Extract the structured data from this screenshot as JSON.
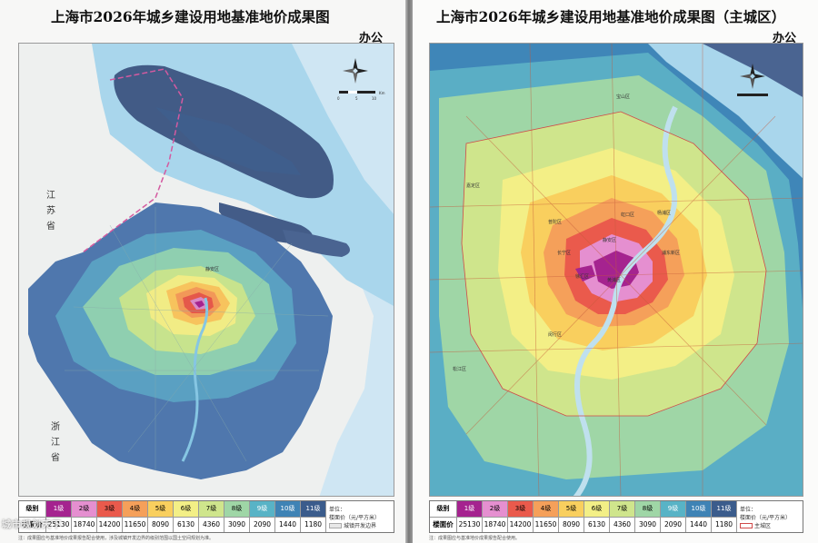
{
  "left_page": {
    "title": "上海市2026年城乡建设用地基准地价成果图",
    "subtitle": "办公",
    "map_labels": {
      "province_1": [
        "江",
        "苏",
        "省"
      ],
      "province_2": [
        "浙",
        "江",
        "省"
      ],
      "district": "静安区"
    },
    "scale_bar": {
      "ticks": [
        "0",
        "5",
        "10",
        "Km"
      ]
    },
    "legend_note": {
      "unit": "单位：",
      "unit_name": "楼面价",
      "unit_value": "（元/平方米）",
      "boundary": "城镇开发边界"
    },
    "footnote": "注：成果图应与基准地价成果报告配合使用，涉及城镇开发边界的级别范围以国土空间规划为准。"
  },
  "right_page": {
    "title": "上海市2026年城乡建设用地基准地价成果图（主城区）",
    "subtitle": "办公",
    "map_labels": {
      "districts": [
        "嘉定区",
        "宝山区",
        "普陀区",
        "虹口区",
        "杨浦区",
        "静安区",
        "长宁区",
        "黄浦区",
        "徐汇区",
        "浦东新区",
        "闵行区",
        "松江区"
      ]
    },
    "legend_note": {
      "unit": "单位：",
      "unit_name": "楼面价",
      "unit_value": "（元/平方米）",
      "boundary": "主城区"
    },
    "footnote": "注：成果图应与基准地价成果报告配合使用。"
  },
  "legend": {
    "grade_label": "级别",
    "price_label": "楼面价",
    "grades": [
      "1级",
      "2级",
      "3级",
      "4级",
      "5级",
      "6级",
      "7级",
      "8级",
      "9级",
      "10级",
      "11级"
    ],
    "prices": [
      "25130",
      "18740",
      "14200",
      "11650",
      "8090",
      "6130",
      "4360",
      "3090",
      "2090",
      "1440",
      "1180"
    ],
    "colors": [
      "#a5238f",
      "#e58fd0",
      "#ea5a4c",
      "#f5a05a",
      "#f9cf5e",
      "#f3ef86",
      "#cfe58c",
      "#9fd6a6",
      "#58b3c6",
      "#3f83b5",
      "#3b5c8c"
    ]
  },
  "colors": {
    "water": "#b8ddee",
    "river": "#7ec2e2",
    "sea": "#d9ecf5",
    "land_outside": "#f0f0ee",
    "boundary_pink": "#d45aa0"
  },
  "watermark": "城市规划天下"
}
